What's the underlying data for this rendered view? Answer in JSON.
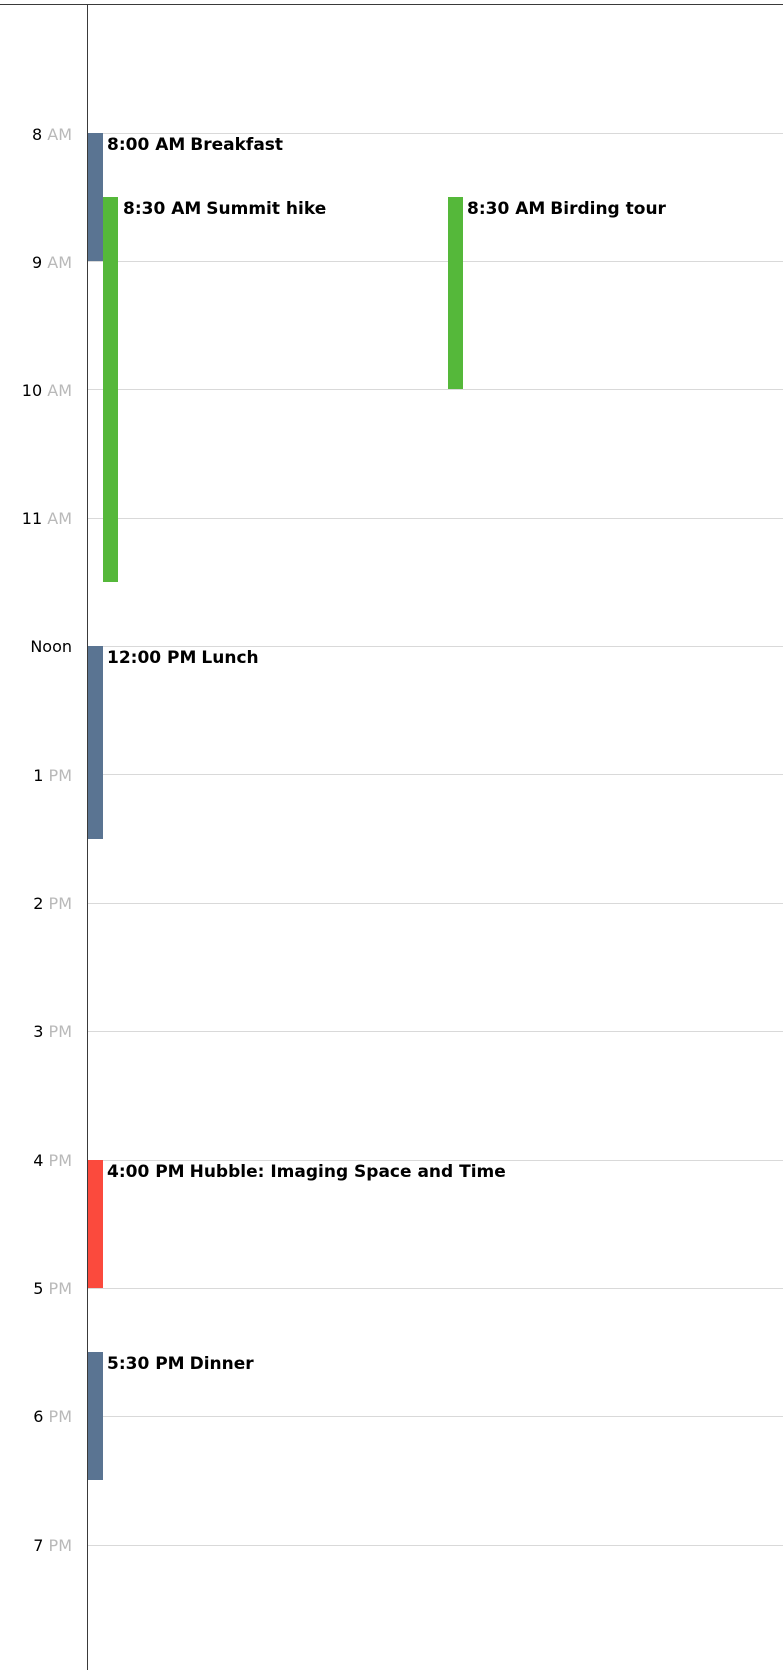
{
  "calendar": {
    "hours": [
      {
        "id": "8am",
        "number": "8",
        "suffix": "AM"
      },
      {
        "id": "9am",
        "number": "9",
        "suffix": "AM"
      },
      {
        "id": "10am",
        "number": "10",
        "suffix": "AM"
      },
      {
        "id": "11am",
        "number": "11",
        "suffix": "AM"
      },
      {
        "id": "noon",
        "number": "Noon",
        "suffix": ""
      },
      {
        "id": "1pm",
        "number": "1",
        "suffix": "PM"
      },
      {
        "id": "2pm",
        "number": "2",
        "suffix": "PM"
      },
      {
        "id": "3pm",
        "number": "3",
        "suffix": "PM"
      },
      {
        "id": "4pm",
        "number": "4",
        "suffix": "PM"
      },
      {
        "id": "5pm",
        "number": "5",
        "suffix": "PM"
      },
      {
        "id": "6pm",
        "number": "6",
        "suffix": "PM"
      },
      {
        "id": "7pm",
        "number": "7",
        "suffix": "PM"
      }
    ],
    "events": [
      {
        "id": "breakfast",
        "time": "8:00 AM",
        "title": "Breakfast",
        "color": "#5a7492"
      },
      {
        "id": "summit-hike",
        "time": "8:30 AM",
        "title": "Summit hike",
        "color": "#55b83a"
      },
      {
        "id": "birding-tour",
        "time": "8:30 AM",
        "title": "Birding tour",
        "color": "#55b83a"
      },
      {
        "id": "lunch",
        "time": "12:00 PM",
        "title": "Lunch",
        "color": "#5a7492"
      },
      {
        "id": "hubble",
        "time": "4:00 PM",
        "title": "Hubble: Imaging Space and Time",
        "color": "#fb4a3d"
      },
      {
        "id": "dinner",
        "time": "5:30 PM",
        "title": "Dinner",
        "color": "#5a7492"
      }
    ]
  }
}
